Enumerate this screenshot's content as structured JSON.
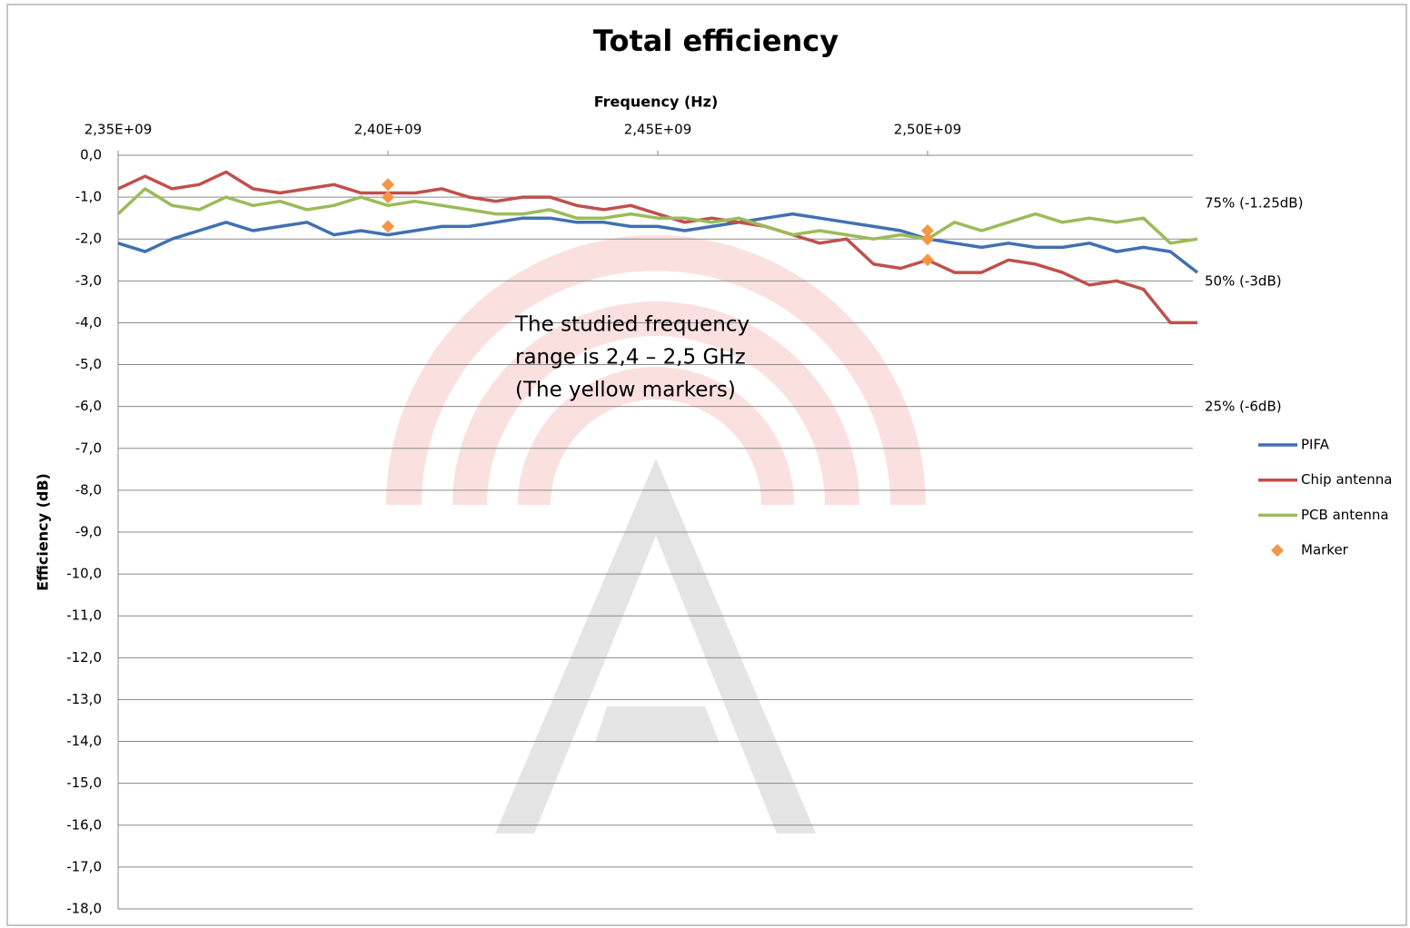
{
  "chart_data": {
    "type": "line",
    "title": "Total efficiency",
    "x_label": "Frequency (Hz)",
    "y_label": "Efficiency (dB)",
    "x": [
      2350000000,
      2355000000,
      2360000000,
      2365000000,
      2370000000,
      2375000000,
      2380000000,
      2385000000,
      2390000000,
      2395000000,
      2400000000,
      2405000000,
      2410000000,
      2415000000,
      2420000000,
      2425000000,
      2430000000,
      2435000000,
      2440000000,
      2445000000,
      2450000000,
      2455000000,
      2460000000,
      2465000000,
      2470000000,
      2475000000,
      2480000000,
      2485000000,
      2490000000,
      2495000000,
      2500000000,
      2505000000,
      2510000000,
      2515000000,
      2520000000,
      2525000000,
      2530000000,
      2535000000,
      2540000000,
      2545000000,
      2550000000
    ],
    "series": [
      {
        "name": "PIFA",
        "color": "#4170b0",
        "values": [
          -2.1,
          -2.3,
          -2.0,
          -1.8,
          -1.6,
          -1.8,
          -1.7,
          -1.6,
          -1.9,
          -1.8,
          -1.9,
          -1.8,
          -1.7,
          -1.7,
          -1.6,
          -1.5,
          -1.5,
          -1.6,
          -1.6,
          -1.7,
          -1.7,
          -1.8,
          -1.7,
          -1.6,
          -1.5,
          -1.4,
          -1.5,
          -1.6,
          -1.7,
          -1.8,
          -2.0,
          -2.1,
          -2.2,
          -2.1,
          -2.2,
          -2.2,
          -2.1,
          -2.3,
          -2.2,
          -2.3,
          -2.8
        ]
      },
      {
        "name": "Chip antenna",
        "color": "#c0504d",
        "values": [
          -0.8,
          -0.5,
          -0.8,
          -0.7,
          -0.4,
          -0.8,
          -0.9,
          -0.8,
          -0.7,
          -0.9,
          -0.9,
          -0.9,
          -0.8,
          -1.0,
          -1.1,
          -1.0,
          -1.0,
          -1.2,
          -1.3,
          -1.2,
          -1.4,
          -1.6,
          -1.5,
          -1.6,
          -1.7,
          -1.9,
          -2.1,
          -2.0,
          -2.6,
          -2.7,
          -2.5,
          -2.8,
          -2.8,
          -2.5,
          -2.6,
          -2.8,
          -3.1,
          -3.0,
          -3.2,
          -4.0,
          -4.0
        ]
      },
      {
        "name": "PCB antenna",
        "color": "#9bbb59",
        "values": [
          -1.4,
          -0.8,
          -1.2,
          -1.3,
          -1.0,
          -1.2,
          -1.1,
          -1.3,
          -1.2,
          -1.0,
          -1.2,
          -1.1,
          -1.2,
          -1.3,
          -1.4,
          -1.4,
          -1.3,
          -1.5,
          -1.5,
          -1.4,
          -1.5,
          -1.5,
          -1.6,
          -1.5,
          -1.7,
          -1.9,
          -1.8,
          -1.9,
          -2.0,
          -1.9,
          -2.0,
          -1.6,
          -1.8,
          -1.6,
          -1.4,
          -1.6,
          -1.5,
          -1.6,
          -1.5,
          -2.1,
          -2.0
        ]
      },
      {
        "name": "Marker",
        "type": "scatter",
        "color": "#f79646",
        "x": [
          2400000000,
          2400000000,
          2400000000,
          2500000000,
          2500000000,
          2500000000
        ],
        "values": [
          -0.7,
          -1.0,
          -1.7,
          -1.8,
          -2.0,
          -2.5
        ]
      }
    ],
    "xlim": [
      2350000000,
      2550000000
    ],
    "xticks": [
      {
        "value": 2350000000,
        "label": "2,35E+09"
      },
      {
        "value": 2400000000,
        "label": "2,40E+09"
      },
      {
        "value": 2450000000,
        "label": "2,45E+09"
      },
      {
        "value": 2500000000,
        "label": "2,50E+09"
      }
    ],
    "ylim": [
      -18,
      0
    ],
    "yticks": [
      {
        "value": 0,
        "label": "0,0"
      },
      {
        "value": -1,
        "label": "-1,0"
      },
      {
        "value": -2,
        "label": "-2,0"
      },
      {
        "value": -3,
        "label": "-3,0"
      },
      {
        "value": -4,
        "label": "-4,0"
      },
      {
        "value": -5,
        "label": "-5,0"
      },
      {
        "value": -6,
        "label": "-6,0"
      },
      {
        "value": -7,
        "label": "-7,0"
      },
      {
        "value": -8,
        "label": "-8,0"
      },
      {
        "value": -9,
        "label": "-9,0"
      },
      {
        "value": -10,
        "label": "-10,0"
      },
      {
        "value": -11,
        "label": "-11,0"
      },
      {
        "value": -12,
        "label": "-12,0"
      },
      {
        "value": -13,
        "label": "-13,0"
      },
      {
        "value": -14,
        "label": "-14,0"
      },
      {
        "value": -15,
        "label": "-15,0"
      },
      {
        "value": -16,
        "label": "-16,0"
      },
      {
        "value": -17,
        "label": "-17,0"
      },
      {
        "value": -18,
        "label": "-18,0"
      }
    ],
    "grid": true,
    "legend": "right",
    "annotations": [
      "75%  (-1.25dB)",
      "50% (-3dB)",
      "25% (-6dB)"
    ],
    "text_box": [
      "The studied frequency",
      "range is 2,4 – 2,5 GHz",
      "(The yellow markers)"
    ]
  }
}
